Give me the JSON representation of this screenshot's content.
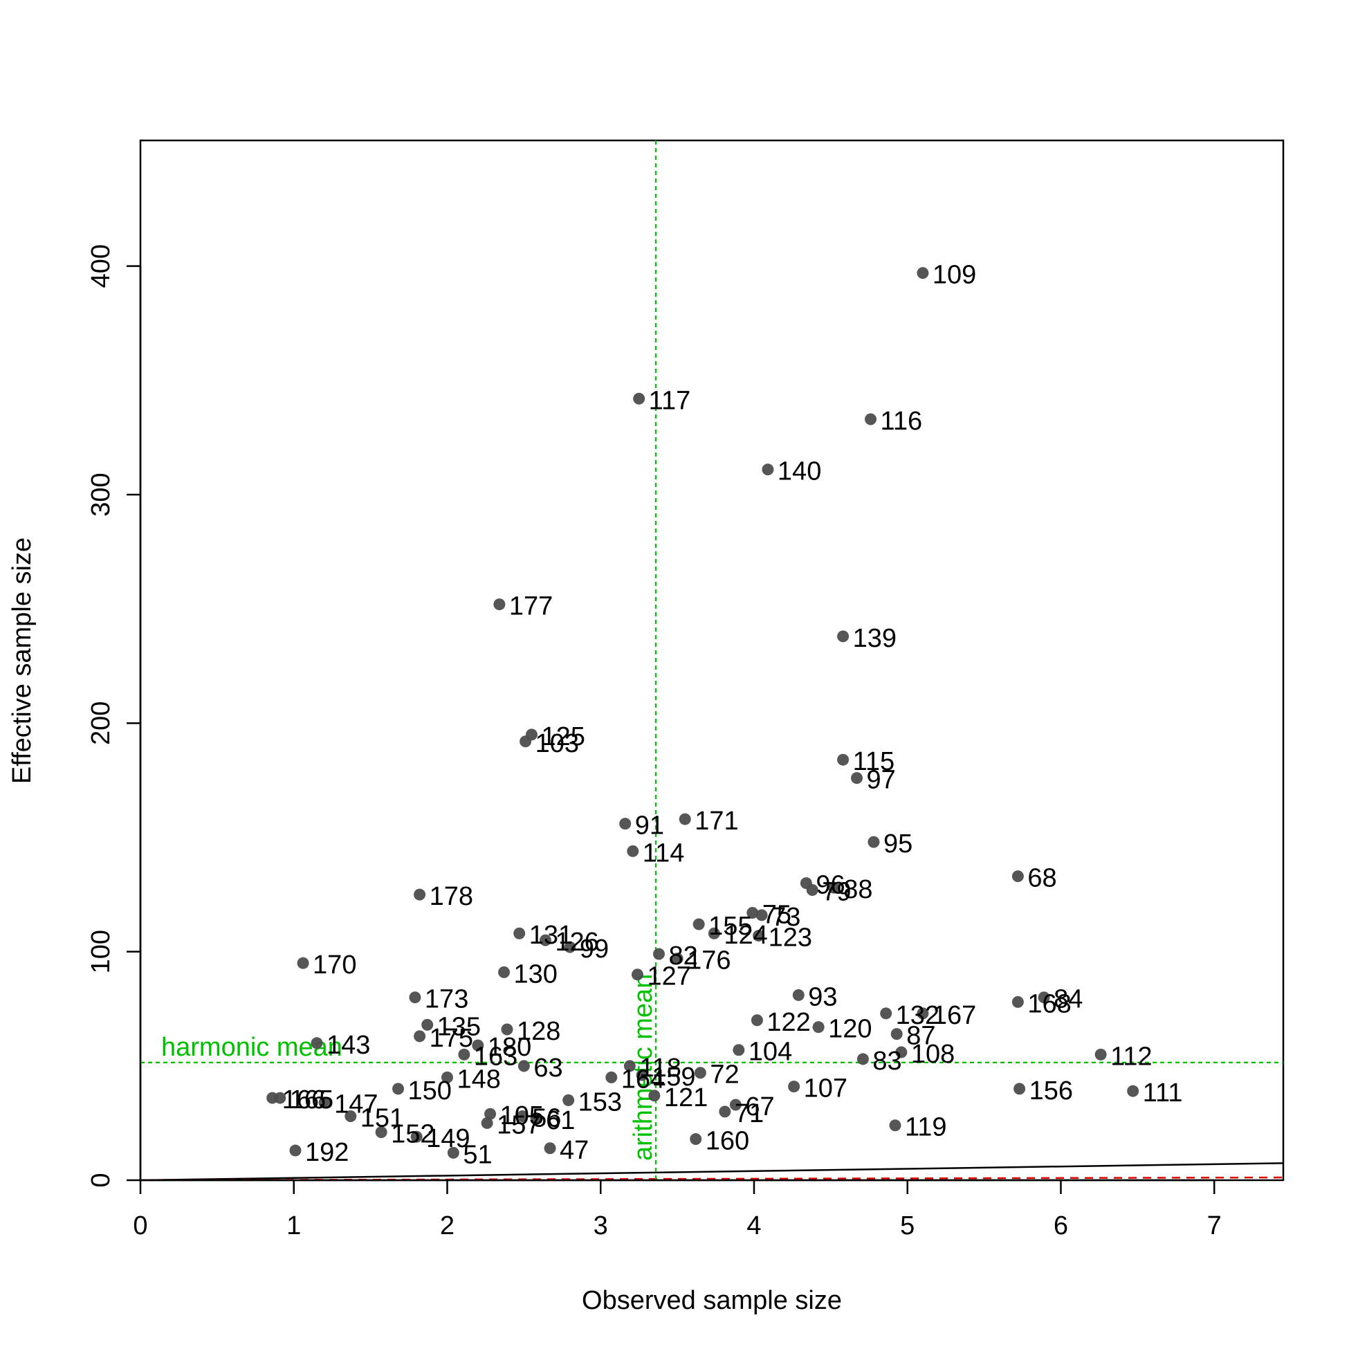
{
  "chart_data": {
    "type": "scatter",
    "xlabel": "Observed sample size",
    "ylabel": "Effective sample size",
    "xlim": [
      0,
      7.45
    ],
    "ylim": [
      0,
      455
    ],
    "x_ticks": [
      0,
      1,
      2,
      3,
      4,
      5,
      6,
      7
    ],
    "y_ticks": [
      0,
      100,
      200,
      300,
      400
    ],
    "point_color": "#4d4d4d",
    "reference_color": "#00c000",
    "reference_lines": {
      "harmonic_mean": {
        "label": "harmonic mean",
        "y": 51.5
      },
      "arithmetic_mean": {
        "label": "arithmetic mean",
        "x": 3.36
      }
    },
    "lines": [
      {
        "style": "solid",
        "color": "#000000",
        "x": [
          0,
          7.45
        ],
        "y": [
          0,
          7.45
        ]
      },
      {
        "style": "dashed",
        "color": "#e00000",
        "x": [
          0,
          7.45
        ],
        "y": [
          0,
          1.2
        ]
      }
    ],
    "points": [
      {
        "x": 5.1,
        "y": 397,
        "label": "109"
      },
      {
        "x": 3.25,
        "y": 342,
        "label": "117"
      },
      {
        "x": 4.76,
        "y": 333,
        "label": "116"
      },
      {
        "x": 4.09,
        "y": 311,
        "label": "140"
      },
      {
        "x": 2.34,
        "y": 252,
        "label": "177"
      },
      {
        "x": 4.58,
        "y": 238,
        "label": "139"
      },
      {
        "x": 2.55,
        "y": 195,
        "label": "125"
      },
      {
        "x": 2.51,
        "y": 192,
        "label": "103"
      },
      {
        "x": 4.58,
        "y": 184,
        "label": "115"
      },
      {
        "x": 4.67,
        "y": 176,
        "label": "97"
      },
      {
        "x": 3.55,
        "y": 158,
        "label": "171"
      },
      {
        "x": 3.16,
        "y": 156,
        "label": "91"
      },
      {
        "x": 4.78,
        "y": 148,
        "label": "95"
      },
      {
        "x": 3.21,
        "y": 144,
        "label": "114"
      },
      {
        "x": 5.72,
        "y": 133,
        "label": "68"
      },
      {
        "x": 4.34,
        "y": 130,
        "label": "96"
      },
      {
        "x": 4.38,
        "y": 127,
        "label": "79"
      },
      {
        "x": 4.52,
        "y": 128,
        "label": "88"
      },
      {
        "x": 1.82,
        "y": 125,
        "label": "178"
      },
      {
        "x": 3.99,
        "y": 117,
        "label": "75"
      },
      {
        "x": 4.05,
        "y": 116,
        "label": "73"
      },
      {
        "x": 3.64,
        "y": 112,
        "label": "155"
      },
      {
        "x": 3.74,
        "y": 108,
        "label": "124"
      },
      {
        "x": 4.03,
        "y": 107,
        "label": "123"
      },
      {
        "x": 2.47,
        "y": 108,
        "label": "131"
      },
      {
        "x": 2.64,
        "y": 105,
        "label": "126"
      },
      {
        "x": 2.8,
        "y": 102,
        "label": "99"
      },
      {
        "x": 3.38,
        "y": 99,
        "label": "82"
      },
      {
        "x": 3.5,
        "y": 97,
        "label": "176"
      },
      {
        "x": 1.06,
        "y": 95,
        "label": "170"
      },
      {
        "x": 2.37,
        "y": 91,
        "label": "130"
      },
      {
        "x": 3.24,
        "y": 90,
        "label": "127"
      },
      {
        "x": 4.29,
        "y": 81,
        "label": "93"
      },
      {
        "x": 5.89,
        "y": 80,
        "label": "84"
      },
      {
        "x": 5.72,
        "y": 78,
        "label": "168"
      },
      {
        "x": 1.79,
        "y": 80,
        "label": "173"
      },
      {
        "x": 4.86,
        "y": 73,
        "label": "132"
      },
      {
        "x": 5.1,
        "y": 73,
        "label": "167"
      },
      {
        "x": 4.02,
        "y": 70,
        "label": "122"
      },
      {
        "x": 4.42,
        "y": 67,
        "label": "120"
      },
      {
        "x": 1.87,
        "y": 68,
        "label": "135"
      },
      {
        "x": 2.39,
        "y": 66,
        "label": "128"
      },
      {
        "x": 4.93,
        "y": 64,
        "label": "87"
      },
      {
        "x": 1.82,
        "y": 63,
        "label": "175"
      },
      {
        "x": 1.15,
        "y": 60,
        "label": "143"
      },
      {
        "x": 2.2,
        "y": 59,
        "label": "180"
      },
      {
        "x": 3.9,
        "y": 57,
        "label": "104"
      },
      {
        "x": 4.96,
        "y": 56,
        "label": "108"
      },
      {
        "x": 6.26,
        "y": 55,
        "label": "112"
      },
      {
        "x": 2.11,
        "y": 55,
        "label": "163"
      },
      {
        "x": 4.71,
        "y": 53,
        "label": "83"
      },
      {
        "x": 2.5,
        "y": 50,
        "label": "63"
      },
      {
        "x": 3.19,
        "y": 50,
        "label": "118"
      },
      {
        "x": 3.65,
        "y": 47,
        "label": "72"
      },
      {
        "x": 2.0,
        "y": 45,
        "label": "148"
      },
      {
        "x": 3.07,
        "y": 45,
        "label": "164"
      },
      {
        "x": 3.27,
        "y": 46,
        "label": "159"
      },
      {
        "x": 1.68,
        "y": 40,
        "label": "150"
      },
      {
        "x": 4.26,
        "y": 41,
        "label": "107"
      },
      {
        "x": 5.73,
        "y": 40,
        "label": "156"
      },
      {
        "x": 6.47,
        "y": 39,
        "label": "111"
      },
      {
        "x": 3.35,
        "y": 37,
        "label": "121"
      },
      {
        "x": 0.86,
        "y": 36,
        "label": "166"
      },
      {
        "x": 0.91,
        "y": 36,
        "label": "165"
      },
      {
        "x": 1.2,
        "y": 34,
        "label": "147"
      },
      {
        "x": 2.79,
        "y": 35,
        "label": "153"
      },
      {
        "x": 3.88,
        "y": 33,
        "label": "67"
      },
      {
        "x": 3.81,
        "y": 30,
        "label": "71"
      },
      {
        "x": 1.37,
        "y": 28,
        "label": "151"
      },
      {
        "x": 2.28,
        "y": 29,
        "label": "105"
      },
      {
        "x": 2.49,
        "y": 28,
        "label": "56"
      },
      {
        "x": 2.58,
        "y": 27,
        "label": "61"
      },
      {
        "x": 2.26,
        "y": 25,
        "label": "157"
      },
      {
        "x": 4.92,
        "y": 24,
        "label": "119"
      },
      {
        "x": 1.57,
        "y": 21,
        "label": "152"
      },
      {
        "x": 1.8,
        "y": 19,
        "label": "149"
      },
      {
        "x": 3.62,
        "y": 18,
        "label": "160"
      },
      {
        "x": 2.67,
        "y": 14,
        "label": "47"
      },
      {
        "x": 1.01,
        "y": 13,
        "label": "192"
      },
      {
        "x": 2.04,
        "y": 12,
        "label": "51"
      }
    ]
  }
}
